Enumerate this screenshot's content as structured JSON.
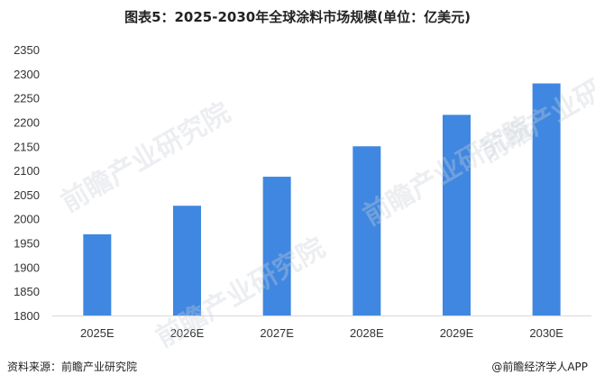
{
  "page": {
    "title": "图表5：2025-2030年全球涂料市场规模(单位：亿美元)",
    "source": "资料来源：前瞻产业研究院",
    "brand": "@前瞻经济学人APP",
    "watermark": "前瞻产业研究院"
  },
  "colors": {
    "bar": "#3f87e0",
    "axis": "#d9d9d9",
    "tick_text": "#333333"
  },
  "chart_data": {
    "type": "bar",
    "title": "图表5：2025-2030年全球涂料市场规模(单位：亿美元)",
    "categories": [
      "2025E",
      "2026E",
      "2027E",
      "2028E",
      "2029E",
      "2030E"
    ],
    "values": [
      1968,
      2027,
      2087,
      2150,
      2215,
      2280
    ],
    "xlabel": "",
    "ylabel": "",
    "ylim": [
      1800,
      2350
    ],
    "yticks": [
      1800,
      1850,
      1900,
      1950,
      2000,
      2050,
      2100,
      2150,
      2200,
      2250,
      2300,
      2350
    ],
    "grid": false,
    "legend": "none"
  }
}
